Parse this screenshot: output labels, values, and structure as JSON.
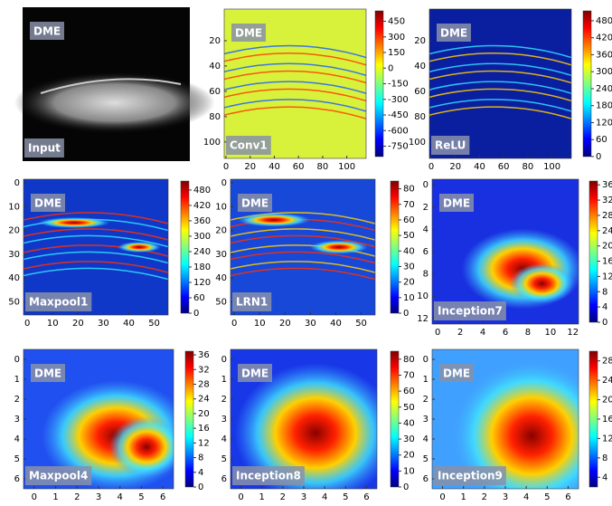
{
  "chart_data": [
    {
      "type": "image",
      "label": "DME",
      "name": "Input"
    },
    {
      "type": "heatmap",
      "label": "DME",
      "name": "Conv1",
      "xlim": [
        -1.5,
        116
      ],
      "ylim": [
        -5,
        113
      ],
      "xticks": [
        0,
        20,
        40,
        60,
        80,
        100
      ],
      "yticks": [
        20,
        40,
        60,
        80,
        100
      ],
      "clim": [
        -850,
        550
      ],
      "cticks": [
        450,
        300,
        150,
        0,
        -150,
        -300,
        -450,
        -600,
        -750
      ]
    },
    {
      "type": "heatmap",
      "label": "DME",
      "name": "ReLU",
      "xlim": [
        -1.5,
        116
      ],
      "ylim": [
        -5,
        113
      ],
      "xticks": [
        0,
        20,
        40,
        60,
        80,
        100
      ],
      "yticks": [
        20,
        40,
        60,
        80,
        100
      ],
      "clim": [
        0,
        515
      ],
      "cticks": [
        480,
        420,
        360,
        300,
        240,
        180,
        120,
        60,
        0
      ]
    },
    {
      "type": "heatmap",
      "label": "DME",
      "name": "Maxpool1",
      "xlim": [
        -1.5,
        55.5
      ],
      "ylim": [
        -1.5,
        55.5
      ],
      "xticks": [
        0,
        10,
        20,
        30,
        40,
        50
      ],
      "yticks": [
        0,
        10,
        20,
        30,
        40,
        50
      ],
      "clim": [
        0,
        515
      ],
      "cticks": [
        480,
        420,
        360,
        300,
        240,
        180,
        120,
        60,
        0
      ]
    },
    {
      "type": "heatmap",
      "label": "DME",
      "name": "LRN1",
      "xlim": [
        -1.5,
        55.5
      ],
      "ylim": [
        -1.5,
        55.5
      ],
      "xticks": [
        0,
        10,
        20,
        30,
        40,
        50
      ],
      "yticks": [
        0,
        10,
        20,
        30,
        40,
        50
      ],
      "clim": [
        0,
        85
      ],
      "cticks": [
        80,
        70,
        60,
        50,
        40,
        30,
        20,
        10,
        0
      ]
    },
    {
      "type": "heatmap",
      "label": "DME",
      "name": "Inception7",
      "xlim": [
        -0.5,
        12.5
      ],
      "ylim": [
        -0.5,
        12.5
      ],
      "xticks": [
        0,
        2,
        4,
        6,
        8,
        10,
        12
      ],
      "yticks": [
        0,
        2,
        4,
        6,
        8,
        10,
        12
      ],
      "clim": [
        0,
        37
      ],
      "cticks": [
        36,
        32,
        28,
        24,
        20,
        16,
        12,
        8,
        4,
        0
      ]
    },
    {
      "type": "heatmap",
      "label": "DME",
      "name": "Maxpool4",
      "xlim": [
        -0.5,
        6.5
      ],
      "ylim": [
        -0.5,
        6.5
      ],
      "xticks": [
        0,
        1,
        2,
        3,
        4,
        5,
        6
      ],
      "yticks": [
        0,
        1,
        2,
        3,
        4,
        5,
        6
      ],
      "clim": [
        0,
        37
      ],
      "cticks": [
        36,
        32,
        28,
        24,
        20,
        16,
        12,
        8,
        4,
        0
      ]
    },
    {
      "type": "heatmap",
      "label": "DME",
      "name": "Inception8",
      "xlim": [
        -0.5,
        6.5
      ],
      "ylim": [
        -0.5,
        6.5
      ],
      "xticks": [
        0,
        1,
        2,
        3,
        4,
        5,
        6
      ],
      "yticks": [
        0,
        1,
        2,
        3,
        4,
        5,
        6
      ],
      "clim": [
        0,
        85
      ],
      "cticks": [
        80,
        70,
        60,
        50,
        40,
        30,
        20,
        10,
        0
      ]
    },
    {
      "type": "heatmap",
      "label": "DME",
      "name": "Inception9",
      "xlim": [
        -0.5,
        6.5
      ],
      "ylim": [
        -0.5,
        6.5
      ],
      "xticks": [
        0,
        1,
        2,
        3,
        4,
        5,
        6
      ],
      "yticks": [
        0,
        1,
        2,
        3,
        4,
        5,
        6
      ],
      "clim": [
        2,
        30
      ],
      "cticks": [
        28,
        24,
        20,
        16,
        12,
        8,
        4
      ]
    }
  ]
}
